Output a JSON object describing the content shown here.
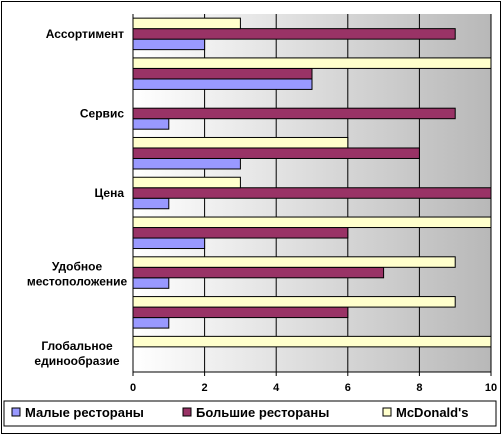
{
  "chart_data": {
    "type": "bar",
    "orientation": "horizontal",
    "categories": [
      "Глобальное единообразие",
      "",
      "Удобное местоположение",
      "",
      "Цена",
      "",
      "Сервис",
      "",
      "Ассортимент"
    ],
    "series": [
      {
        "name": "Малые рестораны",
        "color": "#9999ff",
        "values": [
          0,
          1,
          1,
          2,
          1,
          3,
          1,
          5,
          2
        ]
      },
      {
        "name": "Большие рестораны",
        "color": "#993366",
        "values": [
          0,
          6,
          7,
          6,
          10,
          8,
          9,
          5,
          9
        ]
      },
      {
        "name": "McDonald's",
        "color": "#ffffcc",
        "values": [
          10,
          9,
          9,
          10,
          3,
          6,
          0,
          10,
          3
        ]
      }
    ],
    "xlim": [
      0,
      10
    ],
    "xticks": [
      "0",
      "2",
      "4",
      "6",
      "8",
      "10"
    ],
    "grid": true,
    "legend_position": "bottom"
  }
}
